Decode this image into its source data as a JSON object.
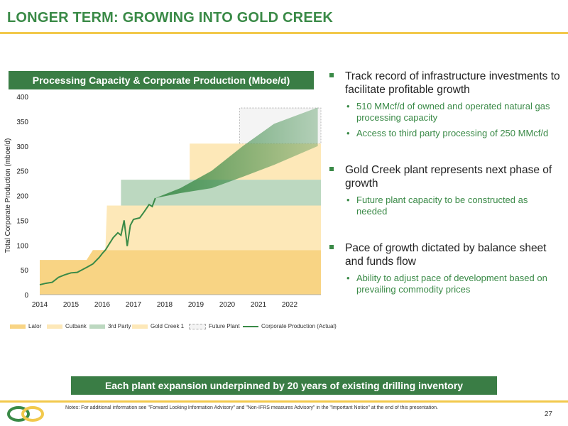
{
  "title": "LONGER TERM: GROWING INTO GOLD CREEK",
  "chart_header": "Processing Capacity & Corporate Production (Mboe/d)",
  "chart_data": {
    "type": "area",
    "ylabel": "Total Corporate Production (mboe/d)",
    "xlim": [
      2014,
      2023
    ],
    "ylim": [
      0,
      400
    ],
    "yticks": [
      0,
      50,
      100,
      150,
      200,
      250,
      300,
      350,
      400
    ],
    "xticks": [
      2014,
      2015,
      2016,
      2017,
      2018,
      2019,
      2020,
      2021,
      2022
    ],
    "legend_placement": "bottom",
    "series": [
      {
        "name": "Lator",
        "color": "#f8d484",
        "steps": [
          [
            2014,
            70
          ],
          [
            2015.5,
            70
          ],
          [
            2015.7,
            90
          ],
          [
            2023,
            90
          ]
        ]
      },
      {
        "name": "Cutbank",
        "color": "#fde8b8",
        "steps": [
          [
            2015.7,
            90
          ],
          [
            2016.1,
            90
          ],
          [
            2016.15,
            180
          ],
          [
            2023,
            180
          ]
        ]
      },
      {
        "name": "3rd Party",
        "color": "#bcd8c0",
        "steps": [
          [
            2016.6,
            180
          ],
          [
            2016.6,
            232
          ],
          [
            2023,
            232
          ]
        ]
      },
      {
        "name": "Gold Creek 1",
        "color": "#fde8b8",
        "steps": [
          [
            2018.8,
            232
          ],
          [
            2018.8,
            305
          ],
          [
            2023,
            305
          ]
        ]
      },
      {
        "name": "Future Plant",
        "color": "#ffffff",
        "steps": [
          [
            2020.4,
            305
          ],
          [
            2020.4,
            377
          ],
          [
            2023,
            377
          ]
        ]
      },
      {
        "name": "Corporate Production (Actual)",
        "color": "#3a8a47",
        "x": [
          2014,
          2014.2,
          2014.4,
          2014.6,
          2014.8,
          2015.0,
          2015.2,
          2015.35,
          2015.5,
          2015.7,
          2015.9,
          2016.0,
          2016.1,
          2016.2,
          2016.35,
          2016.5,
          2016.6,
          2016.7,
          2016.8,
          2016.9,
          2017.0,
          2017.2,
          2017.35,
          2017.5,
          2017.6,
          2017.7
        ],
        "values": [
          20,
          23,
          25,
          35,
          40,
          44,
          45,
          50,
          55,
          62,
          75,
          83,
          90,
          100,
          115,
          125,
          120,
          150,
          98,
          140,
          152,
          155,
          168,
          182,
          178,
          195
        ]
      }
    ],
    "forecast_band": {
      "x": [
        2017.7,
        2018.5,
        2019.5,
        2020.5,
        2021.5,
        2022.9
      ],
      "upper": [
        195,
        215,
        250,
        300,
        345,
        378
      ],
      "lower": [
        195,
        205,
        215,
        238,
        262,
        300
      ]
    }
  },
  "bullets": [
    {
      "text": "Track record of infrastructure investments to facilitate profitable growth",
      "subs": [
        "510 MMcf/d of owned and operated natural gas processing capacity",
        "Access to third party processing of 250 MMcf/d"
      ]
    },
    {
      "text": "Gold Creek plant represents next phase of growth",
      "subs": [
        "Future plant capacity to be constructed as needed"
      ]
    },
    {
      "text": "Pace of growth dictated by balance sheet and funds flow",
      "subs": [
        "Ability to adjust pace of development based on prevailing commodity prices"
      ]
    }
  ],
  "banner": "Each plant expansion underpinned by 20 years of existing drilling inventory",
  "notes": "Notes: For additional information see \"Forward Looking Information Advisory\" and \"Non-IFRS measures Advisory\" in the \"Important Notice\" at the end of this presentation.",
  "page_number": "27"
}
